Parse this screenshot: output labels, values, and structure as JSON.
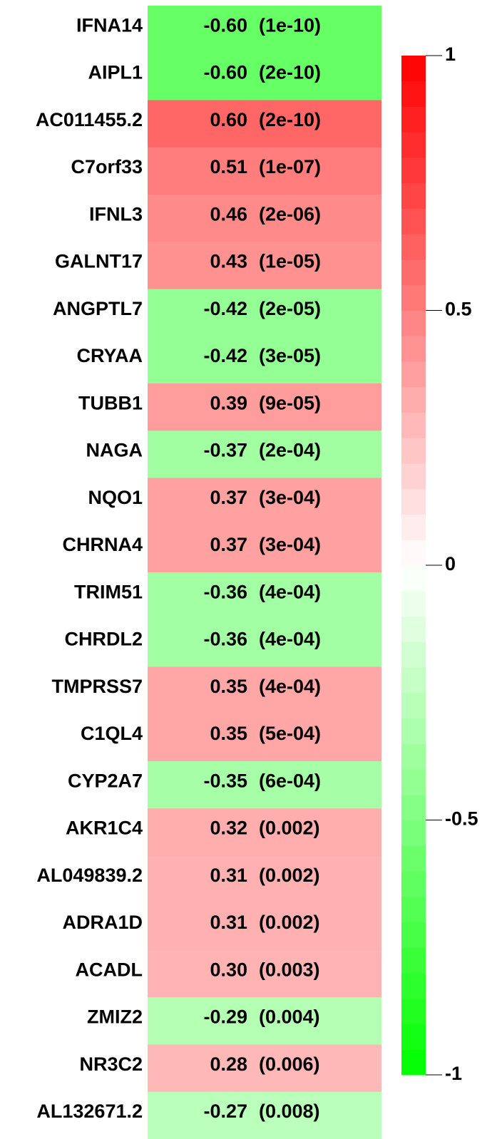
{
  "chart_data": {
    "type": "heatmap",
    "categories": [
      "IFNA14",
      "AIPL1",
      "AC011455.2",
      "C7orf33",
      "IFNL3",
      "GALNT17",
      "ANGPTL7",
      "CRYAA",
      "TUBB1",
      "NAGA",
      "NQO1",
      "CHRNA4",
      "TRIM51",
      "CHRDL2",
      "TMPRSS7",
      "C1QL4",
      "CYP2A7",
      "AKR1C4",
      "AL049839.2",
      "ADRA1D",
      "ACADL",
      "ZMIZ2",
      "NR3C2",
      "AL132671.2"
    ],
    "values": [
      -0.6,
      -0.6,
      0.6,
      0.51,
      0.46,
      0.43,
      -0.42,
      -0.42,
      0.39,
      -0.37,
      0.37,
      0.37,
      -0.36,
      -0.36,
      0.35,
      0.35,
      -0.35,
      0.32,
      0.31,
      0.31,
      0.3,
      -0.29,
      0.28,
      -0.27
    ],
    "value_labels": [
      "-0.60",
      "-0.60",
      "0.60",
      "0.51",
      "0.46",
      "0.43",
      "-0.42",
      "-0.42",
      "0.39",
      "-0.37",
      "0.37",
      "0.37",
      "-0.36",
      "-0.36",
      "0.35",
      "0.35",
      "-0.35",
      "0.32",
      "0.31",
      "0.31",
      "0.30",
      "-0.29",
      "0.28",
      "-0.27"
    ],
    "pvalues": [
      1e-10,
      2e-10,
      2e-10,
      1e-07,
      2e-06,
      1e-05,
      2e-05,
      3e-05,
      9e-05,
      0.0002,
      0.0003,
      0.0003,
      0.0004,
      0.0004,
      0.0004,
      0.0005,
      0.0006,
      0.002,
      0.002,
      0.002,
      0.003,
      0.004,
      0.006,
      0.008
    ],
    "pvalue_labels": [
      "(1e-10)",
      "(2e-10)",
      "(2e-10)",
      "(1e-07)",
      "(2e-06)",
      "(1e-05)",
      "(2e-05)",
      "(3e-05)",
      "(9e-05)",
      "(2e-04)",
      "(3e-04)",
      "(3e-04)",
      "(4e-04)",
      "(4e-04)",
      "(4e-04)",
      "(5e-04)",
      "(6e-04)",
      "(0.002)",
      "(0.002)",
      "(0.002)",
      "(0.003)",
      "(0.004)",
      "(0.006)",
      "(0.008)"
    ],
    "colorscale": [
      "#00ff00",
      "#ffffff",
      "#ff0000"
    ],
    "ylim": [
      -1,
      1
    ],
    "yticks": [
      -1,
      -0.5,
      0,
      0.5,
      1
    ]
  }
}
